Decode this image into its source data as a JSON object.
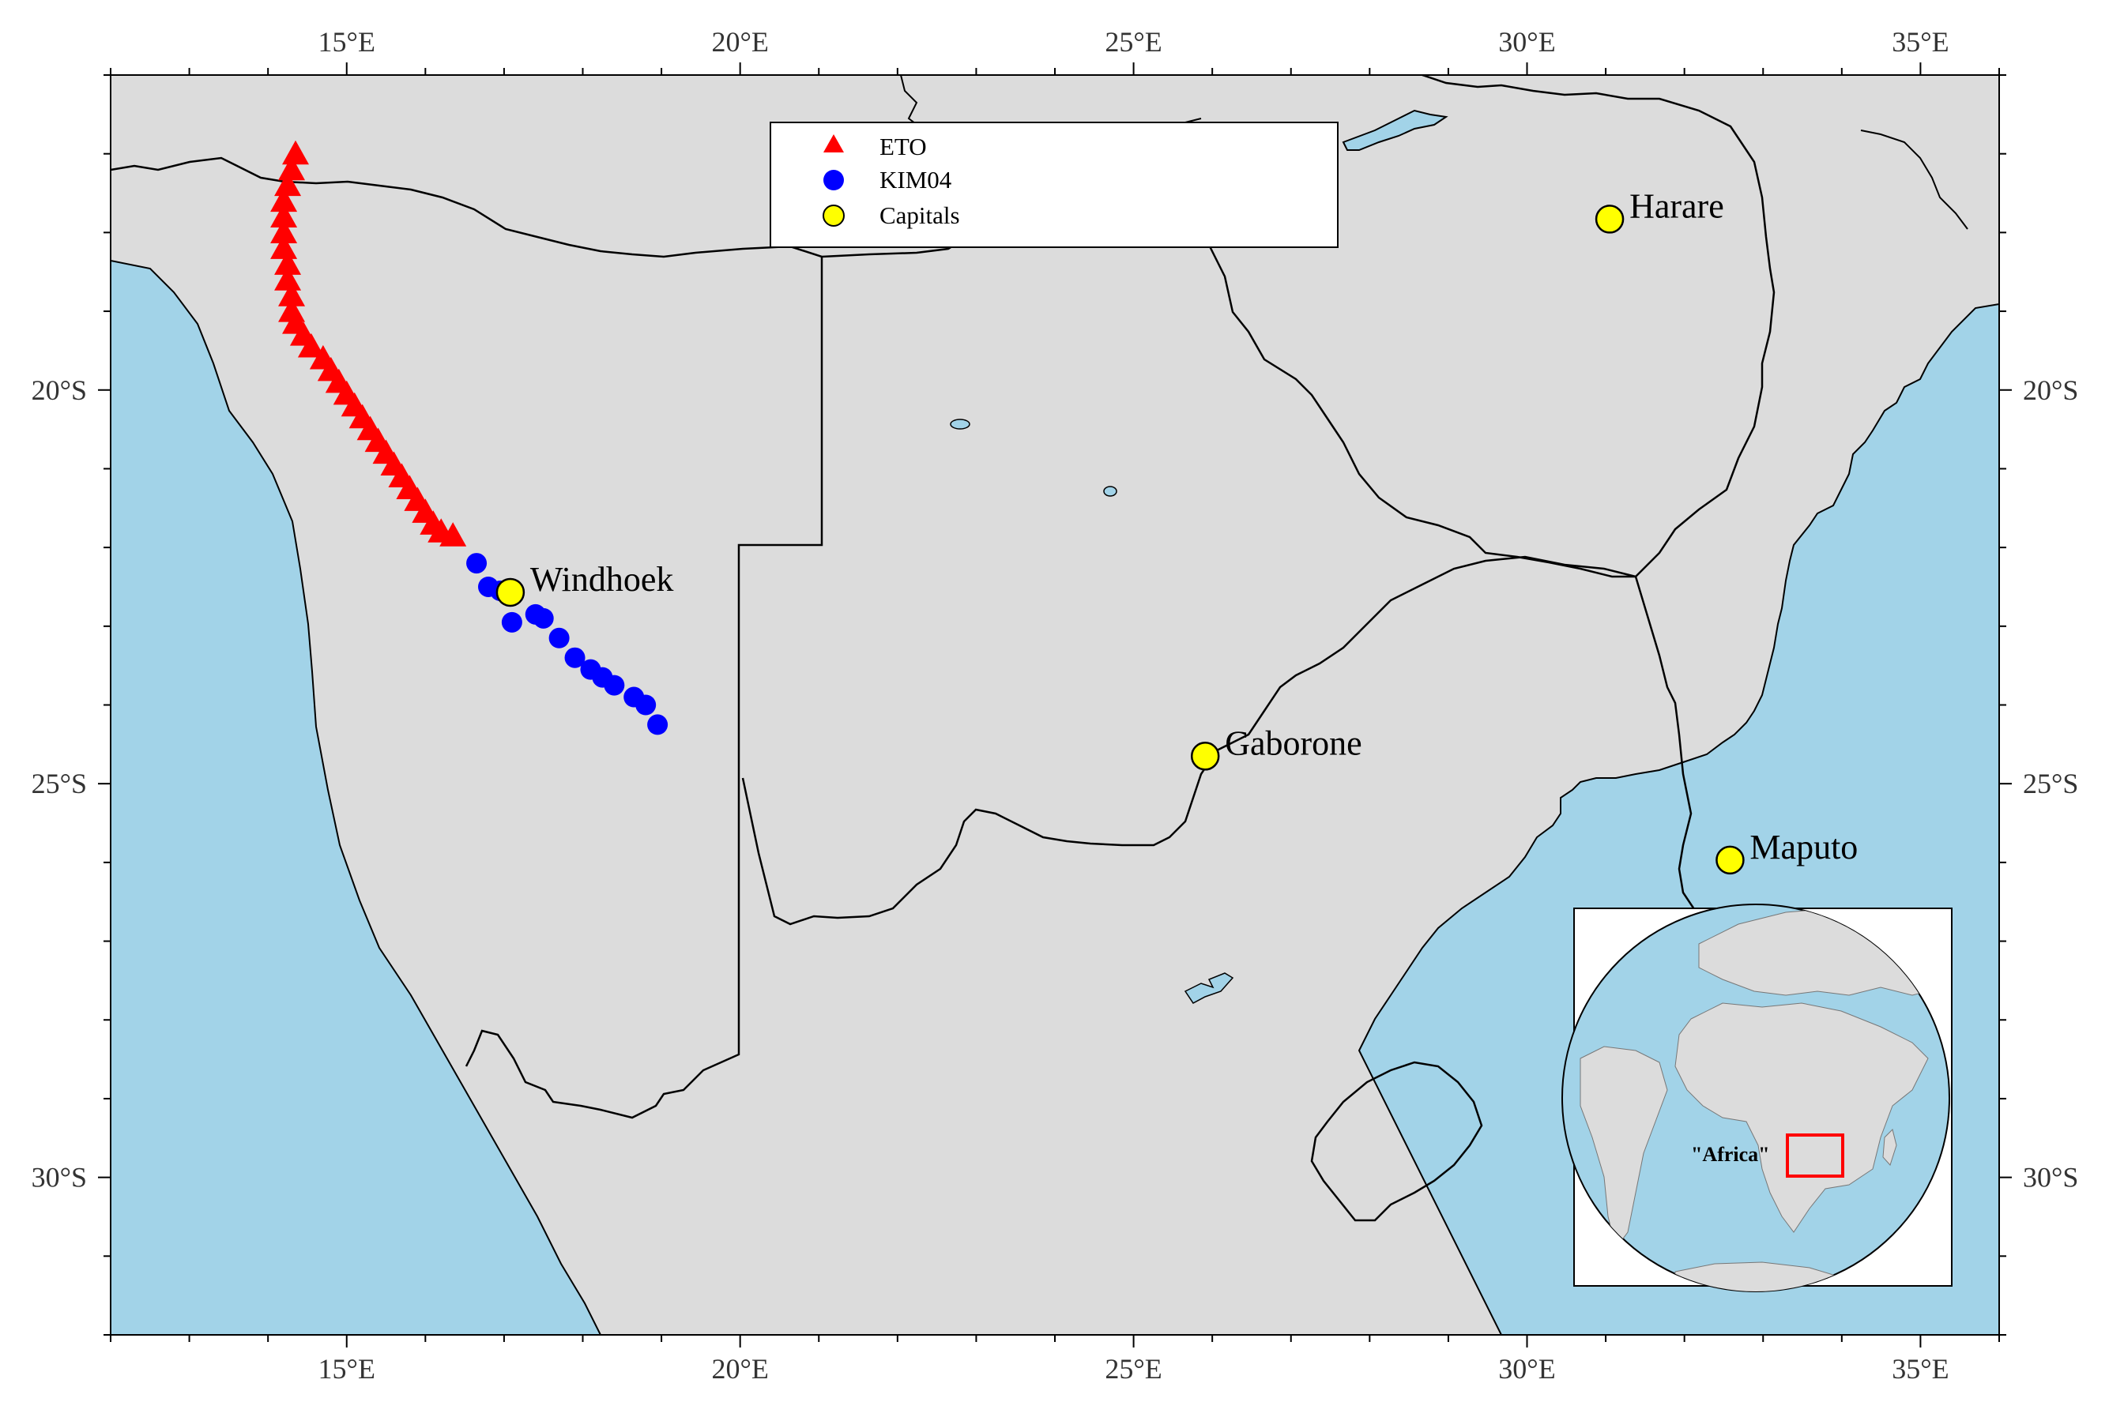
{
  "map": {
    "extent": {
      "lon_min": 12,
      "lon_max": 36,
      "lat_min": -32,
      "lat_max": -16
    },
    "colors": {
      "ocean": "#a2d3e8",
      "land": "#dcdcdc",
      "border": "#000000",
      "eto": "#ff0000",
      "kim04": "#0000ff",
      "capital": "#ffff00"
    },
    "x_ticks": [
      {
        "lon": 15,
        "label": "15°E"
      },
      {
        "lon": 20,
        "label": "20°E"
      },
      {
        "lon": 25,
        "label": "25°E"
      },
      {
        "lon": 30,
        "label": "30°E"
      },
      {
        "lon": 35,
        "label": "35°E"
      }
    ],
    "y_ticks": [
      {
        "lat": -20,
        "label": "20°S"
      },
      {
        "lat": -25,
        "label": "25°S"
      },
      {
        "lat": -30,
        "label": "30°S"
      }
    ],
    "legend": {
      "entries": [
        {
          "label": "ETO",
          "marker": "triangle",
          "color": "#ff0000"
        },
        {
          "label": "KIM04",
          "marker": "circle",
          "color": "#0000ff"
        },
        {
          "label": "Capitals",
          "marker": "circle",
          "color": "#ffff00"
        }
      ]
    },
    "capitals": [
      {
        "name": "Windhoek",
        "lon": 17.08,
        "lat": -22.57
      },
      {
        "name": "Gaborone",
        "lon": 25.91,
        "lat": -24.65
      },
      {
        "name": "Harare",
        "lon": 31.05,
        "lat": -17.83
      },
      {
        "name": "Maputo",
        "lon": 32.58,
        "lat": -25.97
      }
    ],
    "eto_points": [
      [
        14.35,
        -17.0
      ],
      [
        14.3,
        -17.2
      ],
      [
        14.25,
        -17.4
      ],
      [
        14.2,
        -17.6
      ],
      [
        14.2,
        -17.8
      ],
      [
        14.2,
        -18.0
      ],
      [
        14.2,
        -18.2
      ],
      [
        14.25,
        -18.4
      ],
      [
        14.25,
        -18.6
      ],
      [
        14.3,
        -18.8
      ],
      [
        14.3,
        -19.0
      ],
      [
        14.35,
        -19.15
      ],
      [
        14.45,
        -19.3
      ],
      [
        14.55,
        -19.45
      ],
      [
        14.7,
        -19.6
      ],
      [
        14.8,
        -19.75
      ],
      [
        14.9,
        -19.9
      ],
      [
        15.0,
        -20.05
      ],
      [
        15.1,
        -20.2
      ],
      [
        15.2,
        -20.35
      ],
      [
        15.3,
        -20.5
      ],
      [
        15.4,
        -20.65
      ],
      [
        15.5,
        -20.8
      ],
      [
        15.6,
        -20.95
      ],
      [
        15.7,
        -21.1
      ],
      [
        15.8,
        -21.25
      ],
      [
        15.9,
        -21.4
      ],
      [
        16.0,
        -21.55
      ],
      [
        16.1,
        -21.7
      ],
      [
        16.2,
        -21.8
      ],
      [
        16.35,
        -21.85
      ]
    ],
    "kim04_points": [
      [
        16.65,
        -22.2
      ],
      [
        16.8,
        -22.5
      ],
      [
        16.95,
        -22.55
      ],
      [
        17.1,
        -22.95
      ],
      [
        17.4,
        -22.85
      ],
      [
        17.5,
        -22.9
      ],
      [
        17.7,
        -23.15
      ],
      [
        17.9,
        -23.4
      ],
      [
        18.1,
        -23.55
      ],
      [
        18.25,
        -23.65
      ],
      [
        18.4,
        -23.75
      ],
      [
        18.65,
        -23.9
      ],
      [
        18.8,
        -24.0
      ],
      [
        18.95,
        -24.25
      ]
    ],
    "inset": {
      "label": "\"Africa\""
    }
  }
}
